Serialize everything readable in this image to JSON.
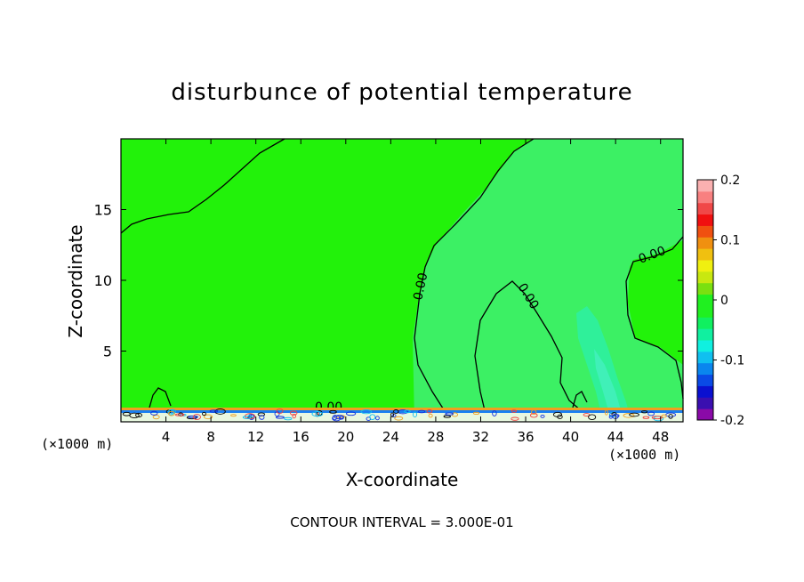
{
  "chart_data": {
    "type": "heatmap",
    "title": "disturbunce of potential temperature",
    "xlabel": "X-coordinate",
    "ylabel": "Z-coordinate",
    "x_unit_left": "(×1000 m)",
    "x_unit_right": "(×1000 m)",
    "xlim": [
      0,
      50
    ],
    "ylim": [
      0,
      20
    ],
    "x_ticks": [
      4,
      8,
      12,
      16,
      20,
      24,
      28,
      32,
      36,
      40,
      44,
      48
    ],
    "y_ticks": [
      5,
      10,
      15
    ],
    "contour_labels": [
      "0.00",
      "0.00",
      "0.00",
      "0.00"
    ],
    "footer": "CONTOUR INTERVAL = 3.000E-01",
    "colorbar": {
      "range": [
        -0.2,
        0.2
      ],
      "tick_values": [
        0.2,
        0.1,
        0,
        -0.1,
        -0.2
      ],
      "tick_labels": [
        "0.2",
        "0.1",
        "0",
        "-0.1",
        "-0.2"
      ],
      "colors": [
        "#8a0aa8",
        "#3a0fb0",
        "#0a10d0",
        "#0a4ae6",
        "#0a86ee",
        "#10c0f0",
        "#10f0e0",
        "#10f0a0",
        "#10f060",
        "#20f020",
        "#20f020",
        "#7ae010",
        "#c8e810",
        "#f0f010",
        "#f0c010",
        "#f09010",
        "#f05010",
        "#f01010",
        "#f04848",
        "#f88080",
        "#fab0b0"
      ]
    }
  }
}
